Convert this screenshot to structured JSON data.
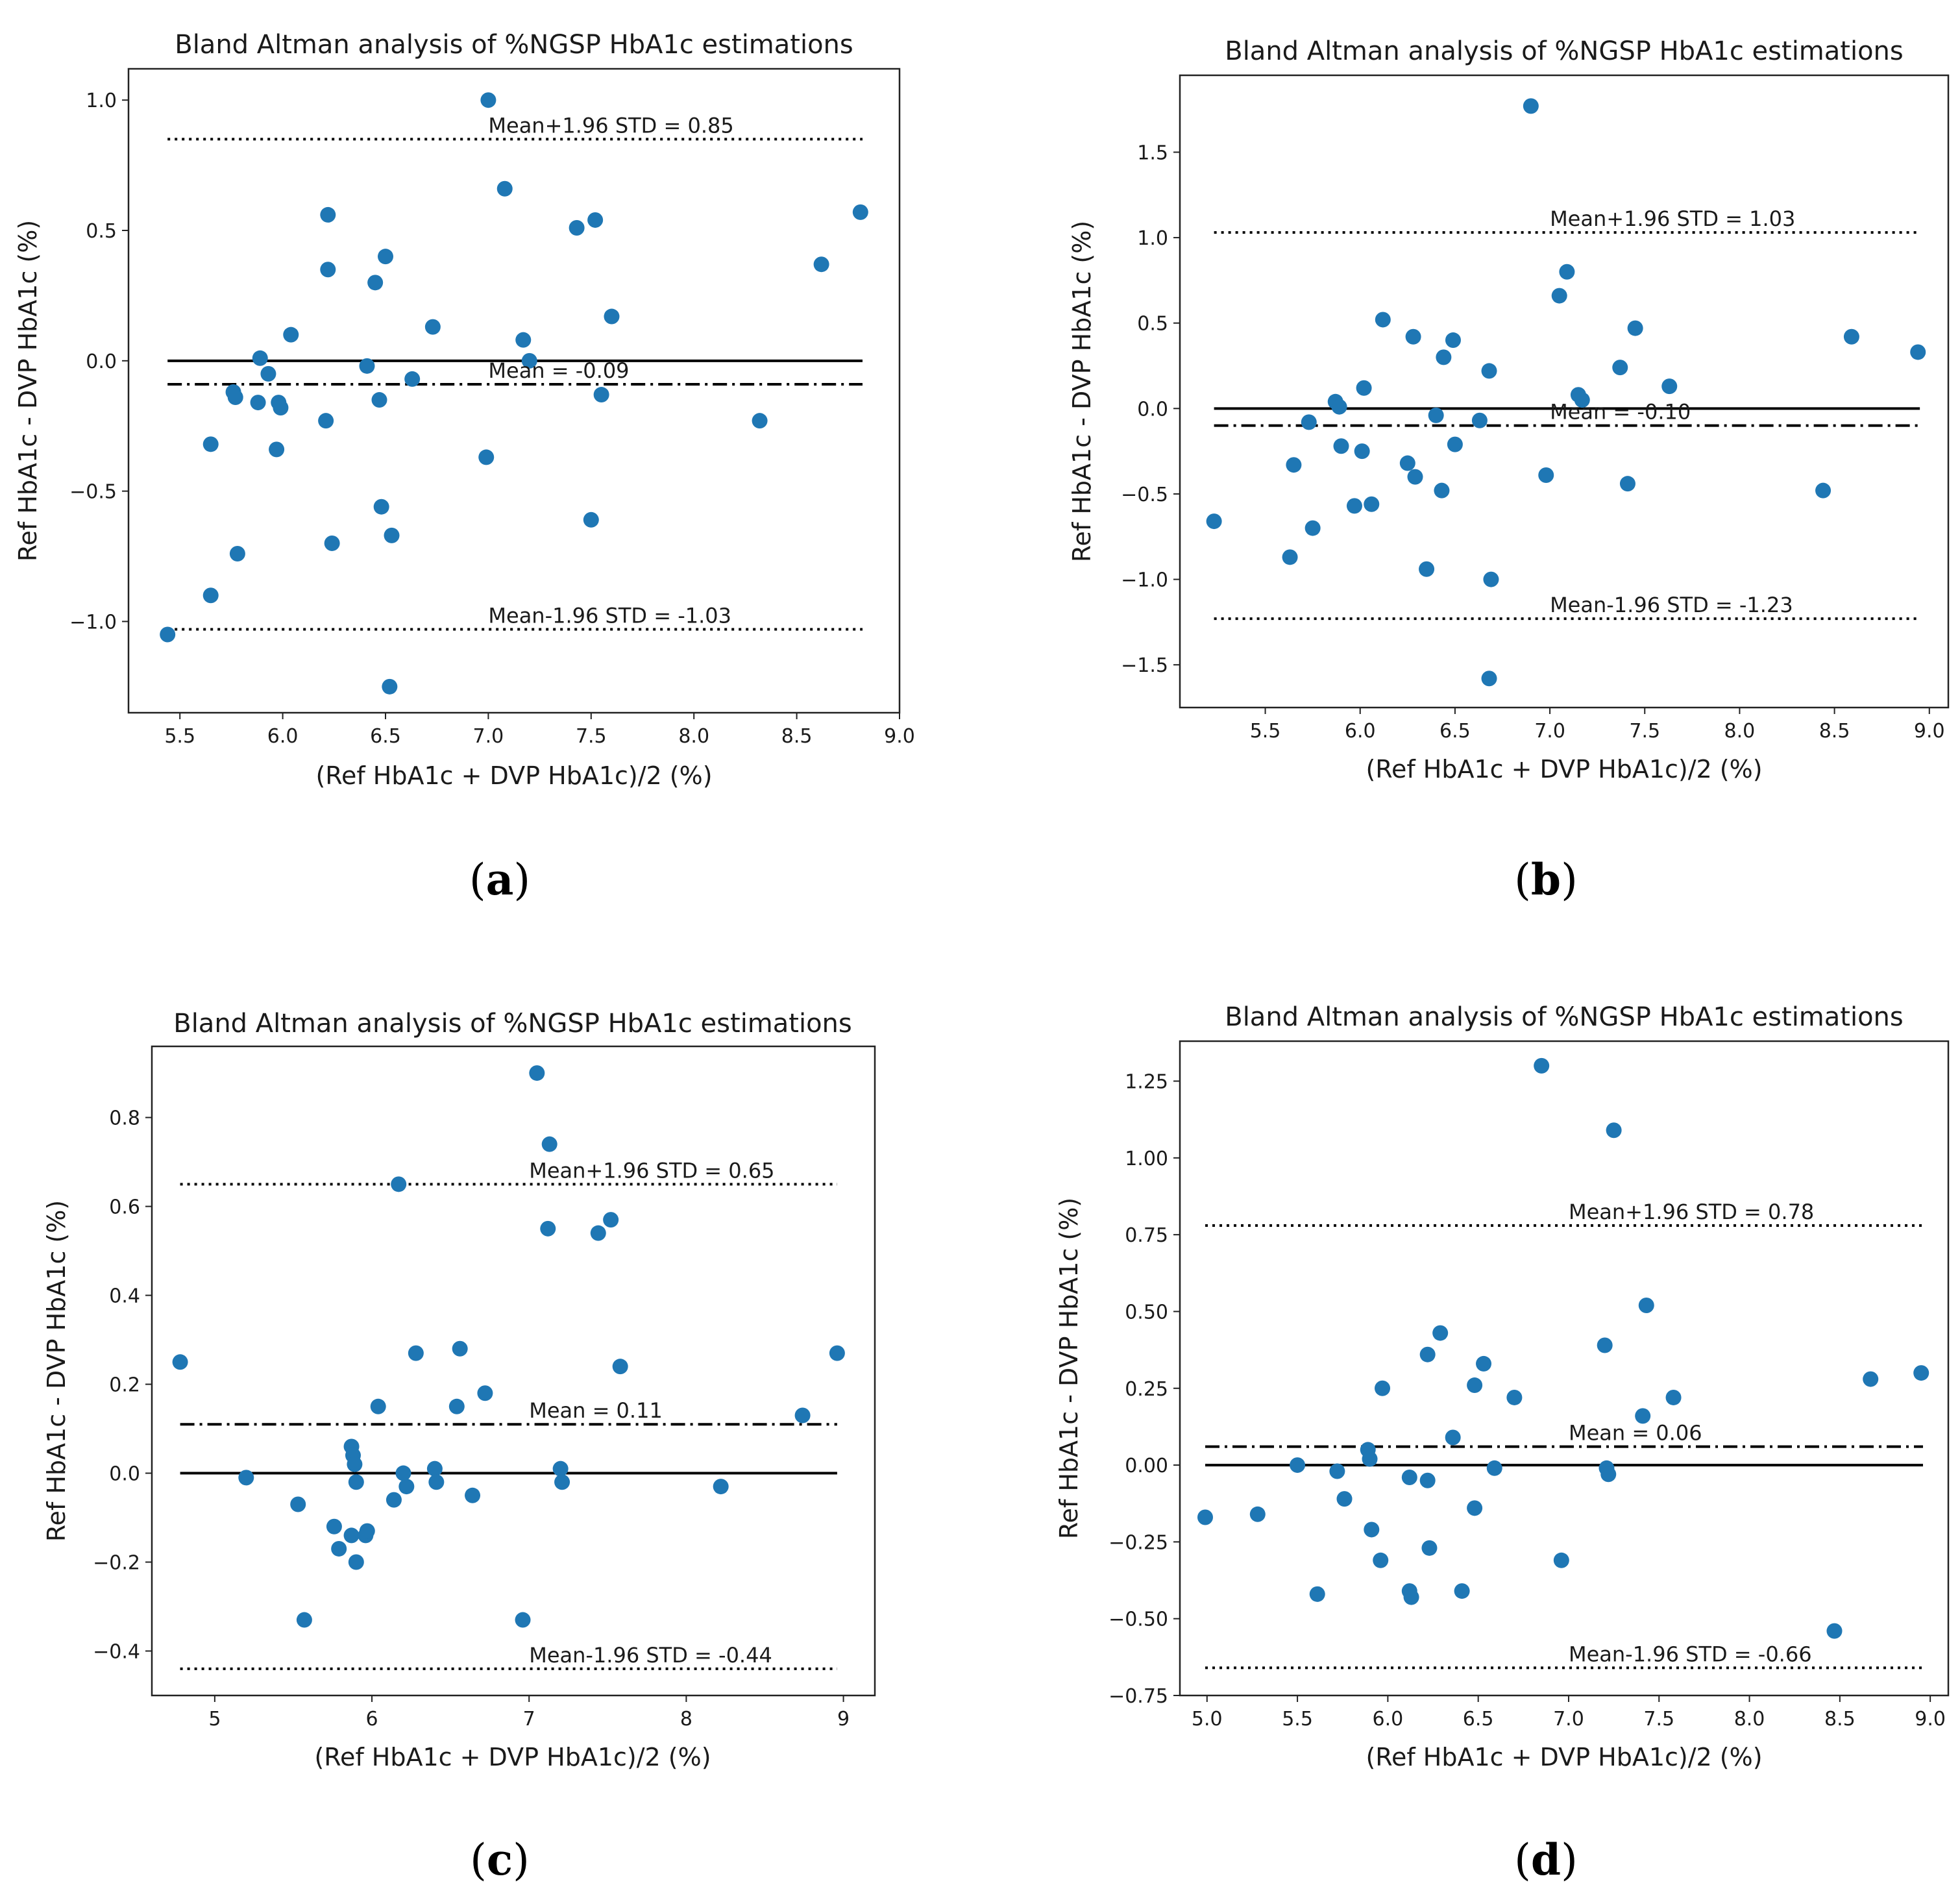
{
  "figure_panels": [
    "a",
    "b",
    "c",
    "d"
  ],
  "chart_data": [
    {
      "panel": "a",
      "type": "scatter",
      "title": "Bland Altman analysis of %NGSP HbA1c estimations",
      "xlabel": "(Ref HbA1c + DVP HbA1c)/2 (%)",
      "ylabel": "Ref HbA1c - DVP HbA1c (%)",
      "xlim": [
        5.25,
        9.0
      ],
      "ylim": [
        -1.35,
        1.12
      ],
      "xticks": [
        5.5,
        6.0,
        6.5,
        7.0,
        7.5,
        8.0,
        8.5,
        9.0
      ],
      "xtick_labels": [
        "5.5",
        "6.0",
        "6.5",
        "7.0",
        "7.5",
        "8.0",
        "8.5",
        "9.0"
      ],
      "yticks": [
        -1.0,
        -0.5,
        0.0,
        0.5,
        1.0
      ],
      "ytick_labels": [
        "−1.0",
        "−0.5",
        "0.0",
        "0.5",
        "1.0"
      ],
      "line_xrange": [
        5.44,
        8.82
      ],
      "zero_line": 0.0,
      "mean": -0.09,
      "upper_loa": 0.85,
      "lower_loa": -1.03,
      "mean_label": "Mean = -0.09",
      "upper_label": "Mean+1.96 STD = 0.85",
      "lower_label": "Mean-1.96 STD = -1.03",
      "annotation_x": 7.0,
      "points": [
        [
          5.44,
          -1.05
        ],
        [
          5.65,
          -0.32
        ],
        [
          5.65,
          -0.9
        ],
        [
          5.76,
          -0.12
        ],
        [
          5.77,
          -0.14
        ],
        [
          5.78,
          -0.74
        ],
        [
          5.88,
          -0.16
        ],
        [
          5.89,
          0.01
        ],
        [
          5.93,
          -0.05
        ],
        [
          5.97,
          -0.34
        ],
        [
          5.98,
          -0.16
        ],
        [
          5.99,
          -0.18
        ],
        [
          6.04,
          0.1
        ],
        [
          6.21,
          -0.23
        ],
        [
          6.22,
          0.35
        ],
        [
          6.22,
          0.56
        ],
        [
          6.24,
          -0.7
        ],
        [
          6.41,
          -0.02
        ],
        [
          6.45,
          0.3
        ],
        [
          6.47,
          -0.15
        ],
        [
          6.48,
          -0.56
        ],
        [
          6.5,
          0.4
        ],
        [
          6.53,
          -0.67
        ],
        [
          6.52,
          -1.25
        ],
        [
          6.63,
          -0.07
        ],
        [
          6.73,
          0.13
        ],
        [
          6.99,
          -0.37
        ],
        [
          7.0,
          1.0
        ],
        [
          7.08,
          0.66
        ],
        [
          7.17,
          0.08
        ],
        [
          7.2,
          0.0
        ],
        [
          7.43,
          0.51
        ],
        [
          7.5,
          -0.61
        ],
        [
          7.52,
          0.54
        ],
        [
          7.55,
          -0.13
        ],
        [
          7.6,
          0.17
        ],
        [
          8.32,
          -0.23
        ],
        [
          8.62,
          0.37
        ],
        [
          8.81,
          0.57
        ]
      ]
    },
    {
      "panel": "b",
      "type": "scatter",
      "title": "Bland Altman analysis of %NGSP HbA1c estimations",
      "xlabel": "(Ref HbA1c + DVP HbA1c)/2 (%)",
      "ylabel": "Ref HbA1c - DVP HbA1c (%)",
      "xlim": [
        5.05,
        9.1
      ],
      "ylim": [
        -1.75,
        1.95
      ],
      "xticks": [
        5.5,
        6.0,
        6.5,
        7.0,
        7.5,
        8.0,
        8.5,
        9.0
      ],
      "xtick_labels": [
        "5.5",
        "6.0",
        "6.5",
        "7.0",
        "7.5",
        "8.0",
        "8.5",
        "9.0"
      ],
      "yticks": [
        -1.5,
        -1.0,
        -0.5,
        0.0,
        0.5,
        1.0,
        1.5
      ],
      "ytick_labels": [
        "−1.5",
        "−1.0",
        "−0.5",
        "0.0",
        "0.5",
        "1.0",
        "1.5"
      ],
      "line_xrange": [
        5.23,
        8.95
      ],
      "zero_line": 0.0,
      "mean": -0.1,
      "upper_loa": 1.03,
      "lower_loa": -1.23,
      "mean_label": "Mean = -0.10",
      "upper_label": "Mean+1.96 STD = 1.03",
      "lower_label": "Mean-1.96 STD = -1.23",
      "annotation_x": 7.0,
      "points": [
        [
          5.23,
          -0.66
        ],
        [
          5.63,
          -0.87
        ],
        [
          5.65,
          -0.33
        ],
        [
          5.73,
          -0.08
        ],
        [
          5.75,
          -0.7
        ],
        [
          5.87,
          0.04
        ],
        [
          5.89,
          0.01
        ],
        [
          5.9,
          -0.22
        ],
        [
          5.97,
          -0.57
        ],
        [
          6.01,
          -0.25
        ],
        [
          6.02,
          0.12
        ],
        [
          6.06,
          -0.56
        ],
        [
          6.12,
          0.52
        ],
        [
          6.25,
          -0.32
        ],
        [
          6.28,
          0.42
        ],
        [
          6.29,
          -0.4
        ],
        [
          6.35,
          -0.94
        ],
        [
          6.4,
          -0.04
        ],
        [
          6.43,
          -0.48
        ],
        [
          6.44,
          0.3
        ],
        [
          6.49,
          0.4
        ],
        [
          6.5,
          -0.21
        ],
        [
          6.63,
          -0.07
        ],
        [
          6.68,
          0.22
        ],
        [
          6.69,
          -1.0
        ],
        [
          6.68,
          -1.58
        ],
        [
          6.9,
          1.77
        ],
        [
          6.98,
          -0.39
        ],
        [
          7.05,
          0.66
        ],
        [
          7.09,
          0.8
        ],
        [
          7.15,
          0.08
        ],
        [
          7.17,
          0.05
        ],
        [
          7.37,
          0.24
        ],
        [
          7.41,
          -0.44
        ],
        [
          7.45,
          0.47
        ],
        [
          7.63,
          0.13
        ],
        [
          8.44,
          -0.48
        ],
        [
          8.59,
          0.42
        ],
        [
          8.94,
          0.33
        ]
      ]
    },
    {
      "panel": "c",
      "type": "scatter",
      "title": "Bland Altman analysis of %NGSP HbA1c estimations",
      "xlabel": "(Ref HbA1c + DVP HbA1c)/2 (%)",
      "ylabel": "Ref HbA1c - DVP HbA1c (%)",
      "xlim": [
        4.6,
        9.2
      ],
      "ylim": [
        -0.5,
        0.96
      ],
      "xticks": [
        5,
        6,
        7,
        8,
        9
      ],
      "xtick_labels": [
        "5",
        "6",
        "7",
        "8",
        "9"
      ],
      "yticks": [
        -0.4,
        -0.2,
        0.0,
        0.2,
        0.4,
        0.6,
        0.8
      ],
      "ytick_labels": [
        "−0.4",
        "−0.2",
        "0.0",
        "0.2",
        "0.4",
        "0.6",
        "0.8"
      ],
      "line_xrange": [
        4.78,
        8.96
      ],
      "zero_line": 0.0,
      "mean": 0.11,
      "upper_loa": 0.65,
      "lower_loa": -0.44,
      "mean_label": "Mean = 0.11",
      "upper_label": "Mean+1.96 STD = 0.65",
      "lower_label": "Mean-1.96 STD = -0.44",
      "annotation_x": 7.0,
      "points": [
        [
          4.78,
          0.25
        ],
        [
          5.2,
          -0.01
        ],
        [
          5.53,
          -0.07
        ],
        [
          5.57,
          -0.33
        ],
        [
          5.76,
          -0.12
        ],
        [
          5.79,
          -0.17
        ],
        [
          5.87,
          0.06
        ],
        [
          5.87,
          -0.14
        ],
        [
          5.88,
          0.04
        ],
        [
          5.89,
          0.02
        ],
        [
          5.9,
          -0.02
        ],
        [
          5.9,
          -0.2
        ],
        [
          5.96,
          -0.14
        ],
        [
          5.97,
          -0.13
        ],
        [
          6.04,
          0.15
        ],
        [
          6.14,
          -0.06
        ],
        [
          6.17,
          0.65
        ],
        [
          6.2,
          0.0
        ],
        [
          6.22,
          -0.03
        ],
        [
          6.28,
          0.27
        ],
        [
          6.4,
          0.01
        ],
        [
          6.41,
          -0.02
        ],
        [
          6.54,
          0.15
        ],
        [
          6.56,
          0.28
        ],
        [
          6.64,
          -0.05
        ],
        [
          6.72,
          0.18
        ],
        [
          6.96,
          -0.33
        ],
        [
          7.05,
          0.9
        ],
        [
          7.13,
          0.74
        ],
        [
          7.12,
          0.55
        ],
        [
          7.2,
          0.01
        ],
        [
          7.21,
          -0.02
        ],
        [
          7.44,
          0.54
        ],
        [
          7.52,
          0.57
        ],
        [
          7.58,
          0.24
        ],
        [
          8.22,
          -0.03
        ],
        [
          8.74,
          0.13
        ],
        [
          8.96,
          0.27
        ]
      ]
    },
    {
      "panel": "d",
      "type": "scatter",
      "title": "Bland Altman analysis of %NGSP HbA1c estimations",
      "xlabel": "(Ref HbA1c + DVP HbA1c)/2 (%)",
      "ylabel": "Ref HbA1c - DVP HbA1c (%)",
      "xlim": [
        4.85,
        9.1
      ],
      "ylim": [
        -0.75,
        1.38
      ],
      "xticks": [
        5.0,
        5.5,
        6.0,
        6.5,
        7.0,
        7.5,
        8.0,
        8.5,
        9.0
      ],
      "xtick_labels": [
        "5.0",
        "5.5",
        "6.0",
        "6.5",
        "7.0",
        "7.5",
        "8.0",
        "8.5",
        "9.0"
      ],
      "yticks": [
        -0.75,
        -0.5,
        -0.25,
        0.0,
        0.25,
        0.5,
        0.75,
        1.0,
        1.25
      ],
      "ytick_labels": [
        "−0.75",
        "−0.50",
        "−0.25",
        "0.00",
        "0.25",
        "0.50",
        "0.75",
        "1.00",
        "1.25"
      ],
      "line_xrange": [
        4.99,
        8.96
      ],
      "zero_line": 0.0,
      "mean": 0.06,
      "upper_loa": 0.78,
      "lower_loa": -0.66,
      "mean_label": "Mean = 0.06",
      "upper_label": "Mean+1.96 STD = 0.78",
      "lower_label": "Mean-1.96 STD = -0.66",
      "annotation_x": 7.0,
      "points": [
        [
          4.99,
          -0.17
        ],
        [
          5.28,
          -0.16
        ],
        [
          5.5,
          0.0
        ],
        [
          5.61,
          -0.42
        ],
        [
          5.72,
          -0.02
        ],
        [
          5.76,
          -0.11
        ],
        [
          5.89,
          0.05
        ],
        [
          5.9,
          0.02
        ],
        [
          5.91,
          -0.21
        ],
        [
          5.96,
          -0.31
        ],
        [
          5.97,
          0.25
        ],
        [
          6.12,
          -0.04
        ],
        [
          6.12,
          -0.41
        ],
        [
          6.13,
          -0.43
        ],
        [
          6.22,
          -0.05
        ],
        [
          6.22,
          0.36
        ],
        [
          6.23,
          -0.27
        ],
        [
          6.29,
          0.43
        ],
        [
          6.36,
          0.09
        ],
        [
          6.41,
          -0.41
        ],
        [
          6.48,
          -0.14
        ],
        [
          6.48,
          0.26
        ],
        [
          6.53,
          0.33
        ],
        [
          6.59,
          -0.01
        ],
        [
          6.7,
          0.22
        ],
        [
          6.85,
          1.3
        ],
        [
          6.96,
          -0.31
        ],
        [
          7.2,
          0.39
        ],
        [
          7.21,
          -0.01
        ],
        [
          7.22,
          -0.03
        ],
        [
          7.25,
          1.09
        ],
        [
          7.41,
          0.16
        ],
        [
          7.43,
          0.52
        ],
        [
          7.58,
          0.22
        ],
        [
          8.47,
          -0.54
        ],
        [
          8.67,
          0.28
        ],
        [
          8.95,
          0.3
        ]
      ]
    }
  ],
  "colors": {
    "point": "#1f77b4",
    "line": "#000000",
    "axes": "#222222"
  }
}
